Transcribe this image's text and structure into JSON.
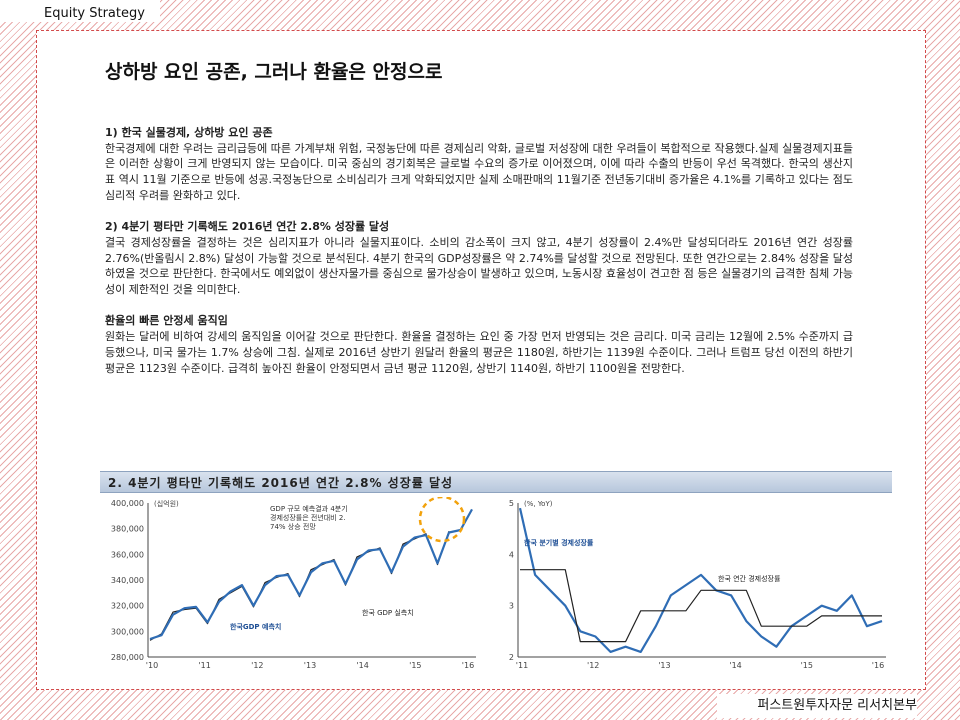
{
  "header": {
    "label": "Equity Strategy"
  },
  "footer": {
    "label": "퍼스트원투자자문 리서치본부"
  },
  "title": "상하방 요인 공존, 그러나 환율은 안정으로",
  "sections": [
    {
      "heading": "1) 한국 실물경제, 상하방 요인 공존",
      "text": "한국경제에 대한 우려는 금리급등에 따른 가계부채 위험, 국정농단에 따른 경제심리 악화, 글로벌 저성장에 대한 우려들이 복합적으로 작용했다.실제 실물경제지표들은 이러한 상황이 크게 반영되지 않는 모습이다. 미국 중심의 경기회복은 글로벌 수요의 증가로 이어졌으며, 이에 따라 수출의 반등이 우선 목격했다. 한국의 생산지표 역시 11월 기준으로 반등에 성공.국정농단으로 소비심리가 크게 악화되었지만 실제 소매판매의 11월기준 전년동기대비 증가율은 4.1%를 기록하고 있다는 점도 심리적 우려를 완화하고 있다."
    },
    {
      "heading": "2) 4분기 평타만 기록해도 2016년 연간 2.8% 성장률 달성",
      "text": "결국 경제성장률을 결정하는 것은 심리지표가 아니라 실물지표이다. 소비의 감소폭이 크지 않고, 4분기 성장률이 2.4%만 달성되더라도 2016년 연간 성장률 2.76%(반올림시 2.8%) 달성이 가능할 것으로 분석된다. 4분기 한국의 GDP성장률은 약 2.74%를 달성할 것으로 전망된다. 또한 연간으로는 2.84% 성장을 달성하였을 것으로 판단한다. 한국에서도 예외없이 생산자물가를 중심으로 물가상승이 발생하고 있으며, 노동시장 효율성이 견고한 점 등은 실물경기의 급격한 침체 가능성이 제한적인 것을 의미한다."
    },
    {
      "heading": "환율의 빠른 안정세 움직임",
      "text": "원화는 달러에 비하여 강세의 움직임을 이어갈 것으로 판단한다. 환율을 결정하는 요인 중 가장 먼저 반영되는 것은 금리다. 미국 금리는 12월에 2.5% 수준까지 급등했으나, 미국 물가는 1.7% 상승에 그침. 실제로 2016년 상반기 원달러 환율의 평균은 1180원, 하반기는 1139원 수준이다. 그러나 트럼프 당선 이전의 하반기 평균은 1123원 수준이다. 급격히 높아진 환율이 안정되면서 금년 평균 1120원, 상반기 1140원, 하반기 1100원을 전망한다."
    }
  ],
  "figure": {
    "banner": "2. 4분기 평타만 기록해도 2016년 연간 2.8% 성장률 달성"
  },
  "chart_data": [
    {
      "type": "line",
      "unit_label": "(십억원)",
      "annotation": "GDP 규모 예측결과 4분기 경제성장률은 전년대비 2.74% 상승 전망",
      "x_ticks": [
        "'10",
        "'11",
        "'12",
        "'13",
        "'14",
        "'15",
        "'16"
      ],
      "y_ticks": [
        "400,000",
        "380,000",
        "360,000",
        "340,000",
        "320,000",
        "300,000",
        "280,000"
      ],
      "ylim": [
        280000,
        400000
      ],
      "series": [
        {
          "name": "한국 GDP 실측치",
          "color": "#222222",
          "values": [
            293000,
            298000,
            315000,
            317000,
            318000,
            306000,
            325000,
            330000,
            335000,
            319000,
            338000,
            342000,
            345000,
            327000,
            348000,
            352000,
            356000,
            336000,
            358000,
            362000,
            365000,
            345000,
            368000,
            372000,
            376000,
            352000,
            378000
          ]
        },
        {
          "name": "한국GDP 예측치",
          "color": "#2f6db5",
          "values": [
            294000,
            297000,
            313000,
            318000,
            319000,
            307000,
            323000,
            331000,
            336000,
            320000,
            336000,
            343000,
            344000,
            328000,
            346000,
            353000,
            355000,
            337000,
            356000,
            363000,
            364000,
            346000,
            366000,
            373000,
            375000,
            353000,
            377000,
            379000,
            395000
          ]
        }
      ],
      "highlight": "2016 Q4 forecast"
    },
    {
      "type": "line",
      "unit_label": "(%, YoY)",
      "x_ticks": [
        "'11",
        "'12",
        "'13",
        "'14",
        "'15",
        "'16"
      ],
      "y_ticks": [
        "5",
        "4",
        "3",
        "2"
      ],
      "ylim": [
        2,
        5
      ],
      "series": [
        {
          "name": "한국 분기별 경제성장률",
          "color": "#2f6db5",
          "values": [
            4.9,
            3.6,
            3.3,
            3.0,
            2.5,
            2.4,
            2.1,
            2.2,
            2.1,
            2.6,
            3.2,
            3.4,
            3.6,
            3.3,
            3.2,
            2.7,
            2.4,
            2.2,
            2.6,
            2.8,
            3.0,
            2.9,
            3.2,
            2.6,
            2.7
          ]
        },
        {
          "name": "한국 연간 경제성장률",
          "color": "#222222",
          "values": [
            3.7,
            3.7,
            3.7,
            3.7,
            2.3,
            2.3,
            2.3,
            2.3,
            2.9,
            2.9,
            2.9,
            2.9,
            3.3,
            3.3,
            3.3,
            3.3,
            2.6,
            2.6,
            2.6,
            2.6,
            2.8,
            2.8,
            2.8,
            2.8,
            2.8
          ]
        }
      ]
    }
  ]
}
